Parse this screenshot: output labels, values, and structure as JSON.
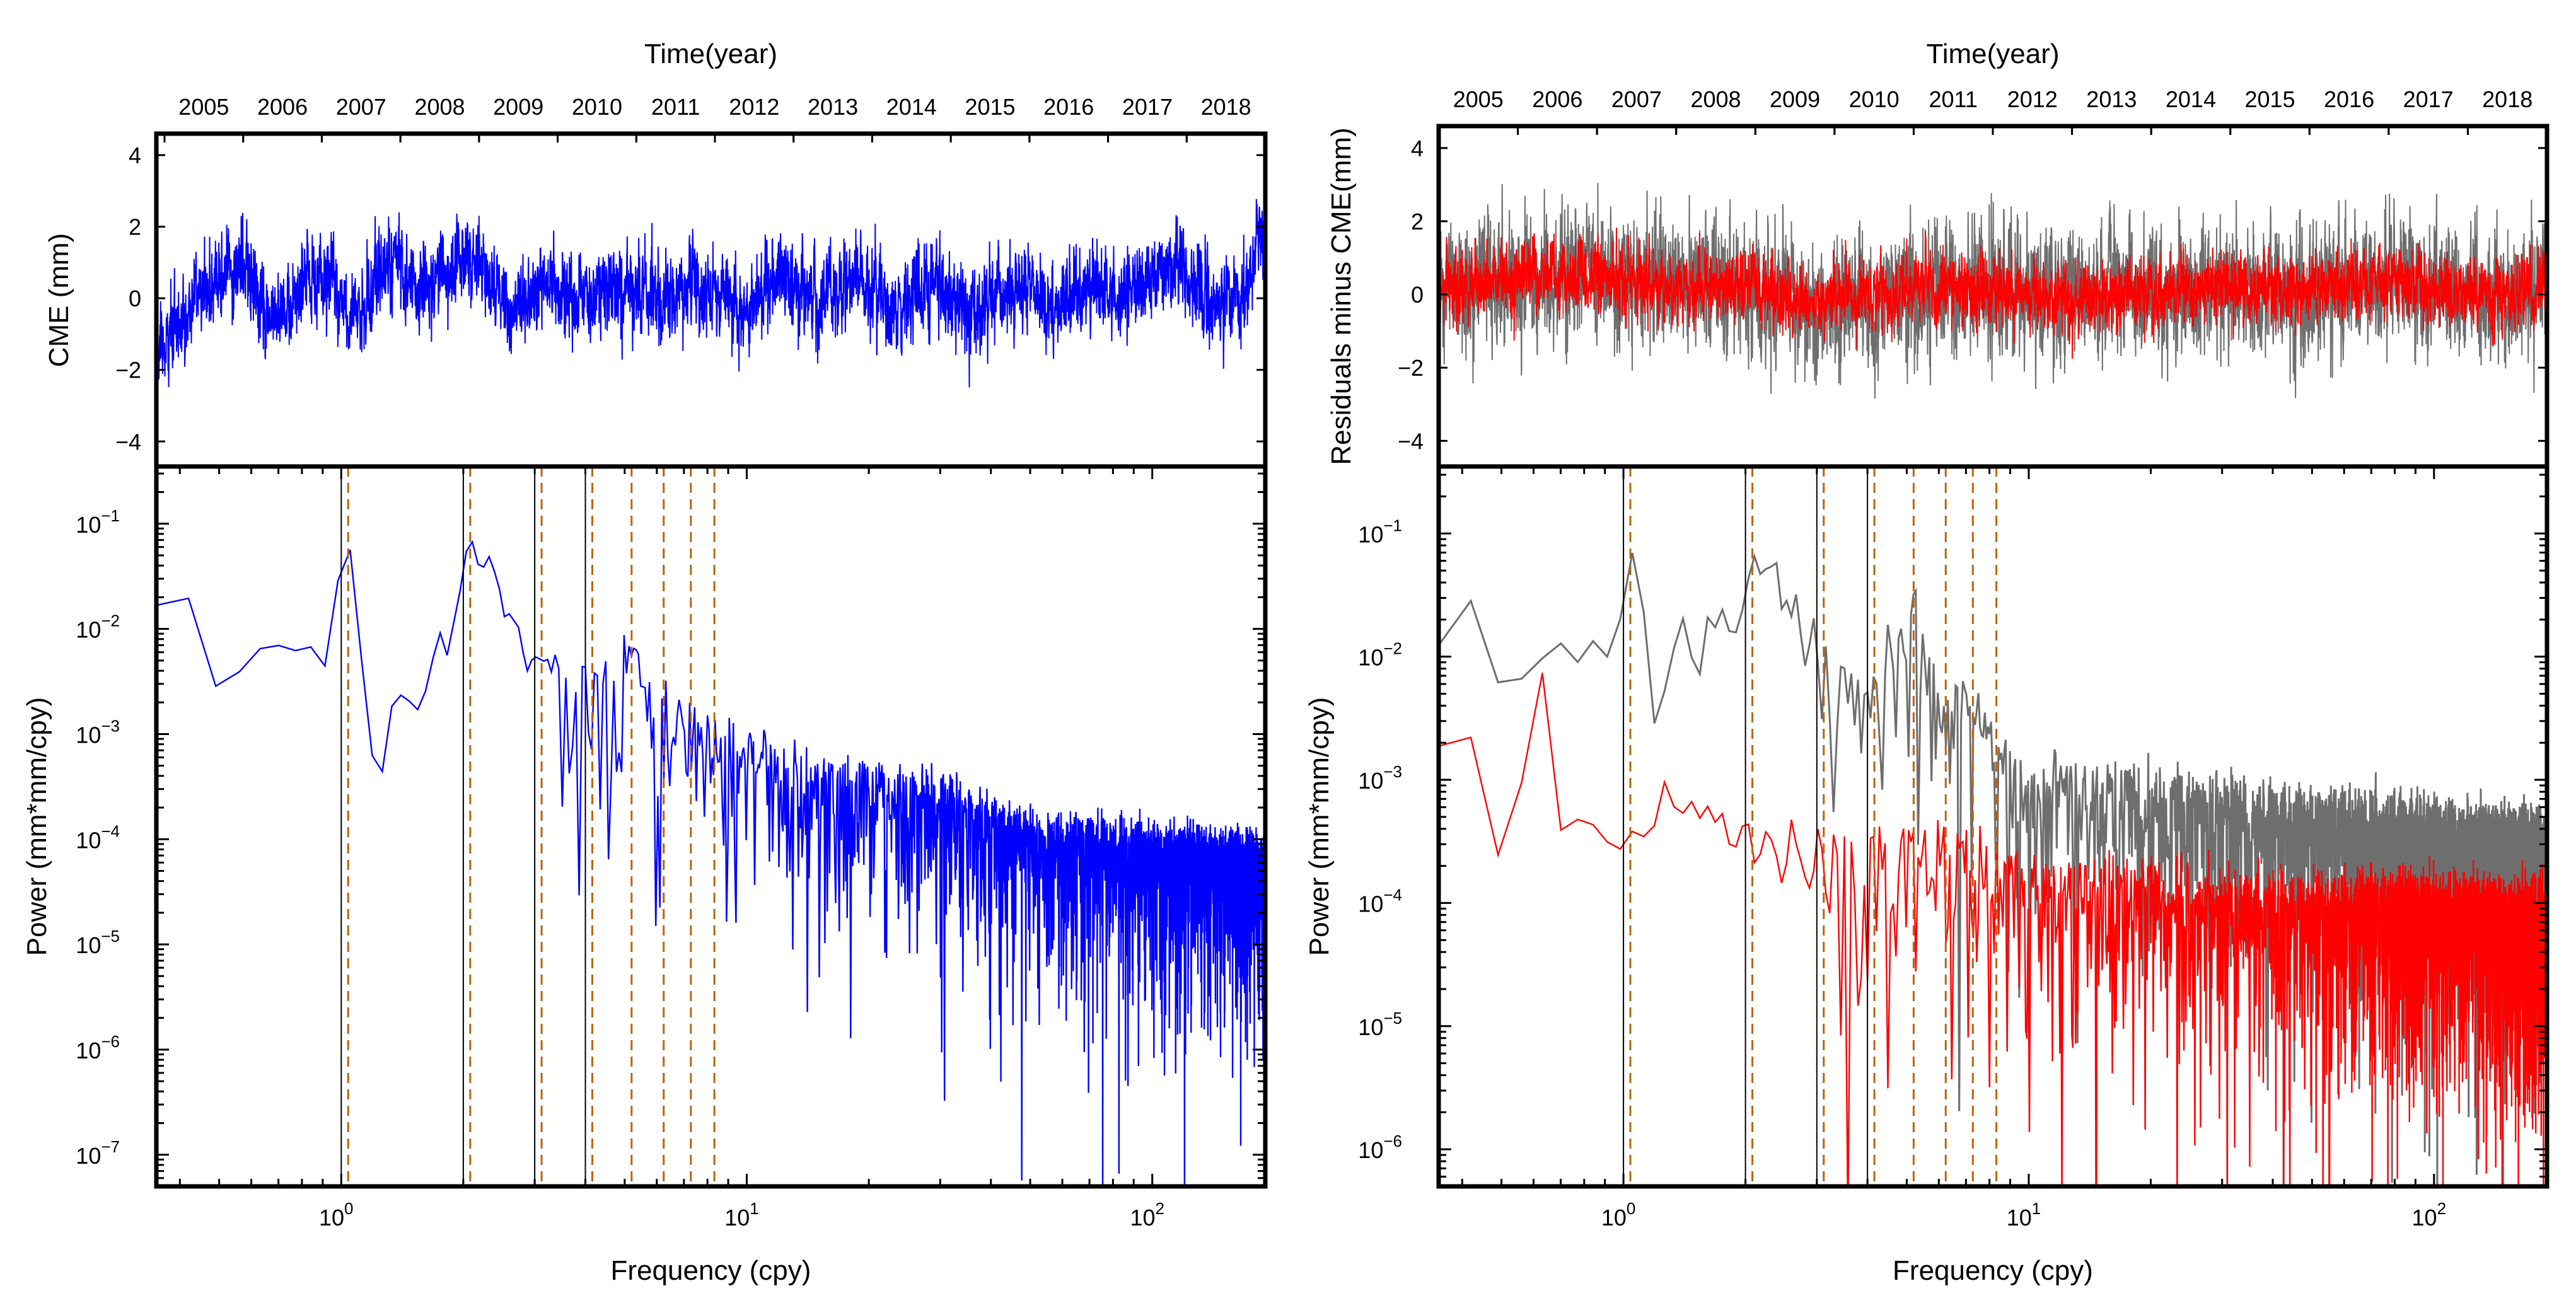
{
  "chart_data": [
    {
      "panel": "left-top",
      "type": "line",
      "top_xlabel": "Time(year)",
      "x_tick_labels": [
        "2005",
        "2006",
        "2007",
        "2008",
        "2009",
        "2010",
        "2011",
        "2012",
        "2013",
        "2014",
        "2015",
        "2016",
        "2017",
        "2018"
      ],
      "ylabel": "CME (mm)",
      "ylim": [
        -4.7,
        4.6
      ],
      "y_tick_labels": [
        "4",
        "2",
        "0",
        "−2",
        "−4"
      ],
      "y_ticks": [
        4,
        2,
        0,
        -2,
        -4
      ],
      "xlim": [
        2004.46,
        2018.75
      ],
      "series": [
        {
          "color": "#0000ff",
          "kind": "daily time series",
          "x": [
            2004.5,
            2005.0,
            2005.5,
            2006.0,
            2006.5,
            2007.0,
            2007.5,
            2008.0,
            2008.5,
            2009.0,
            2009.5,
            2010.0,
            2010.5,
            2011.0,
            2011.5,
            2012.0,
            2012.5,
            2013.0,
            2013.5,
            2014.0,
            2014.5,
            2015.0,
            2015.5,
            2016.0,
            2016.5,
            2017.0,
            2017.5,
            2018.0,
            2018.5,
            2018.75
          ],
          "y": [
            -1.5,
            0.2,
            0.9,
            -0.6,
            0.8,
            -0.4,
            0.9,
            0.2,
            1.6,
            -0.5,
            0.3,
            -0.2,
            0.3,
            0.1,
            0.6,
            -0.4,
            0.7,
            0.0,
            0.5,
            -0.3,
            0.4,
            -0.5,
            0.3,
            -0.2,
            0.4,
            0.0,
            1.0,
            0.1,
            0.2,
            1.8
          ],
          "spread": 1.1
        }
      ]
    },
    {
      "panel": "left-bottom",
      "type": "line",
      "xlabel": "Frequency (cpy)",
      "ylabel": "Power (mm*mm/cpy)",
      "x_scale": "log",
      "y_scale": "log",
      "xlim": [
        0.35,
        190
      ],
      "ylim": [
        5e-08,
        0.35
      ],
      "x_tick_values": [
        1,
        10,
        100
      ],
      "x_tick_labels": [
        "10",
        "10",
        "10"
      ],
      "x_tick_exponents": [
        "0",
        "1",
        "2"
      ],
      "y_tick_values": [
        1e-07,
        1e-06,
        1e-05,
        0.0001,
        0.001,
        0.01,
        0.1
      ],
      "y_tick_labels": [
        "10",
        "10",
        "10",
        "10",
        "10",
        "10",
        "10"
      ],
      "y_tick_exponents": [
        "−7",
        "−6",
        "−5",
        "−4",
        "−3",
        "−2",
        "−1"
      ],
      "vlines_solid": [
        1.0,
        2.0,
        3.0,
        4.0
      ],
      "vlines_dashed": [
        1.04,
        2.08,
        3.12,
        4.16,
        5.2,
        6.24,
        7.28,
        8.32
      ],
      "series": [
        {
          "color": "#0000ff",
          "kind": "periodogram",
          "x": [
            0.35,
            0.45,
            0.5,
            0.6,
            0.7,
            0.8,
            0.9,
            1.0,
            1.05,
            1.2,
            1.5,
            2.0,
            2.1,
            3.0,
            4.0,
            5.2,
            6.0,
            8.0,
            10.0,
            20.0,
            30.0,
            50.0,
            100.0,
            190.0
          ],
          "y": [
            0.013,
            0.025,
            0.002,
            0.01,
            0.008,
            0.007,
            0.006,
            0.03,
            0.045,
            0.0008,
            0.002,
            0.02,
            0.08,
            0.005,
            0.003,
            0.006,
            0.002,
            0.001,
            0.0006,
            0.0003,
            0.00025,
            0.0001,
            8e-05,
            6e-05
          ],
          "spread_decades": 1.6
        }
      ]
    },
    {
      "panel": "right-top",
      "type": "line",
      "top_xlabel": "Time(year)",
      "x_tick_labels": [
        "2005",
        "2006",
        "2007",
        "2008",
        "2009",
        "2010",
        "2011",
        "2012",
        "2013",
        "2014",
        "2015",
        "2016",
        "2017",
        "2018"
      ],
      "ylabel": "Residuals minus CME(mm)",
      "ylim": [
        -4.7,
        4.6
      ],
      "y_tick_labels": [
        "4",
        "2",
        "0",
        "−2",
        "−4"
      ],
      "y_ticks": [
        4,
        2,
        0,
        -2,
        -4
      ],
      "xlim": [
        2004.46,
        2018.75
      ],
      "series": [
        {
          "color": "#6e6e6e",
          "kind": "daily time series",
          "x": [
            2004.5,
            2005.5,
            2006.5,
            2007.5,
            2008.5,
            2009.5,
            2010.5,
            2011.5,
            2012.5,
            2013.5,
            2014.5,
            2015.5,
            2016.5,
            2017.5,
            2018.5,
            2018.75
          ],
          "y": [
            0.0,
            0.4,
            0.5,
            0.3,
            0.2,
            -0.4,
            0.1,
            0.2,
            -0.1,
            0.0,
            0.1,
            0.0,
            0.4,
            0.1,
            0.0,
            1.0
          ],
          "spread": 1.6
        },
        {
          "color": "#ff0000",
          "kind": "daily time series",
          "x": [
            2004.5,
            2005.5,
            2006.5,
            2007.5,
            2008.5,
            2009.5,
            2010.5,
            2011.5,
            2012.5,
            2013.5,
            2014.5,
            2015.5,
            2016.5,
            2017.5,
            2018.5,
            2018.75
          ],
          "y": [
            0.2,
            0.5,
            0.5,
            0.2,
            0.2,
            -0.3,
            0.1,
            0.1,
            -0.1,
            0.0,
            0.1,
            0.0,
            0.4,
            0.1,
            0.0,
            0.2
          ],
          "spread": 0.85
        }
      ]
    },
    {
      "panel": "right-bottom",
      "type": "line",
      "xlabel": "Frequency (cpy)",
      "ylabel": "Power (mm*mm/cpy)",
      "x_scale": "log",
      "y_scale": "log",
      "xlim": [
        0.35,
        190
      ],
      "ylim": [
        5e-07,
        0.35
      ],
      "x_tick_values": [
        1,
        10,
        100
      ],
      "x_tick_labels": [
        "10",
        "10",
        "10"
      ],
      "x_tick_exponents": [
        "0",
        "1",
        "2"
      ],
      "y_tick_values": [
        1e-06,
        1e-05,
        0.0001,
        0.001,
        0.01,
        0.1
      ],
      "y_tick_labels": [
        "10",
        "10",
        "10",
        "10",
        "10",
        "10"
      ],
      "y_tick_exponents": [
        "−6",
        "−5",
        "−4",
        "−3",
        "−2",
        "−1"
      ],
      "vlines_solid": [
        1.0,
        2.0,
        3.0,
        4.0
      ],
      "vlines_dashed": [
        1.04,
        2.08,
        3.12,
        4.16,
        5.2,
        6.24,
        7.28,
        8.32
      ],
      "series": [
        {
          "color": "#6e6e6e",
          "kind": "periodogram",
          "x": [
            0.35,
            0.45,
            0.5,
            0.6,
            0.7,
            0.8,
            0.9,
            1.0,
            1.05,
            1.2,
            1.5,
            2.0,
            2.1,
            3.0,
            4.0,
            5.2,
            6.0,
            8.0,
            10.0,
            20.0,
            50.0,
            100.0,
            190.0
          ],
          "y": [
            0.015,
            0.03,
            0.006,
            0.02,
            0.01,
            0.008,
            0.015,
            0.02,
            0.045,
            0.005,
            0.015,
            0.02,
            0.08,
            0.01,
            0.006,
            0.02,
            0.006,
            0.002,
            0.001,
            0.0007,
            0.0005,
            0.0004,
            0.0003
          ],
          "spread_decades": 1.3
        },
        {
          "color": "#ff0000",
          "kind": "periodogram",
          "x": [
            0.35,
            0.4,
            0.5,
            0.6,
            0.65,
            0.7,
            0.8,
            0.9,
            1.0,
            1.5,
            2.0,
            3.0,
            5.0,
            8.0,
            10.0,
            20.0,
            50.0,
            100.0,
            190.0
          ],
          "y": [
            0.001,
            0.004,
            0.0003,
            0.004,
            0.006,
            0.0002,
            0.001,
            0.0004,
            0.0003,
            0.0008,
            0.0003,
            0.0002,
            0.0003,
            0.0002,
            0.00015,
            0.00012,
            0.0001,
            0.0001,
            8e-05
          ],
          "spread_decades": 1.8
        }
      ]
    }
  ]
}
